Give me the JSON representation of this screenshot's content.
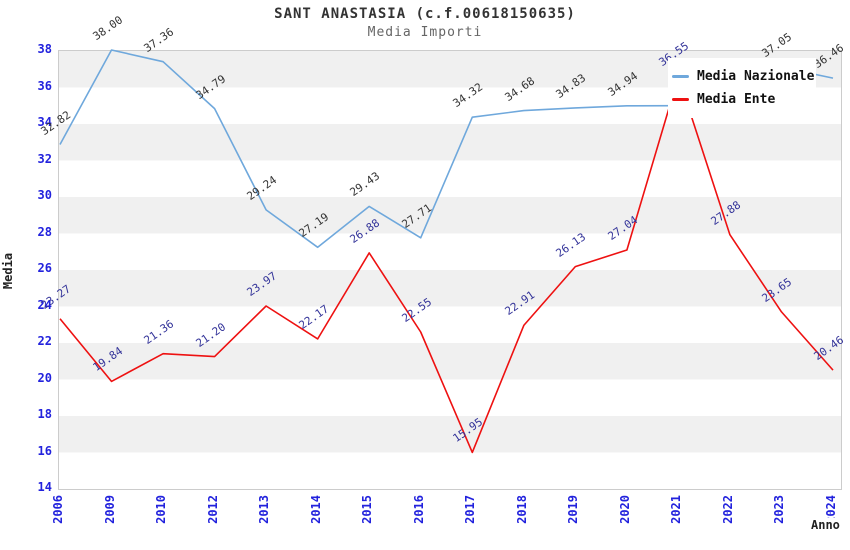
{
  "title": "SANT ANASTASIA (c.f.00618150635)",
  "subtitle": "Media Importi",
  "colors": {
    "band_gray": "#f0f0f0",
    "band_white": "#ffffff",
    "plot_border": "#cccccc",
    "axis_tick_text": "#2222dd",
    "nazionale_line": "#6fa8dc",
    "ente_line": "#ee1111",
    "nazionale_label_text": "#333333",
    "ente_label_text": "#333399"
  },
  "legend": {
    "items": [
      {
        "label": "Media Nazionale",
        "color": "#6fa8dc"
      },
      {
        "label": "Media Ente",
        "color": "#ee1111"
      }
    ]
  },
  "chart_data": {
    "type": "line",
    "title": "SANT ANASTASIA (c.f.00618150635)",
    "subtitle": "Media Importi",
    "xlabel": "Anno",
    "ylabel": "Media",
    "x": [
      2006,
      2009,
      2010,
      2012,
      2013,
      2014,
      2015,
      2016,
      2017,
      2018,
      2019,
      2020,
      2021,
      2022,
      2023,
      2024
    ],
    "yticks": [
      38,
      36,
      34,
      32,
      30,
      28,
      26,
      24,
      22,
      20,
      18,
      16,
      14
    ],
    "ylim": [
      14,
      38
    ],
    "grid": "alternating horizontal gray/white bands every 2 units",
    "legend_position": "top-right",
    "series": [
      {
        "name": "Media Nazionale",
        "color": "#6fa8dc",
        "label_color": "#333333",
        "values": [
          32.82,
          38.0,
          37.36,
          34.79,
          29.24,
          27.19,
          29.43,
          27.71,
          34.32,
          34.68,
          34.83,
          34.94,
          34.95,
          35.0,
          37.05,
          36.46
        ],
        "hidden_label_indexes": [
          12,
          13
        ],
        "note": "2021 and 2022 point labels are covered by the legend box; values estimated from line position"
      },
      {
        "name": "Media Ente",
        "color": "#ee1111",
        "label_color": "#333399",
        "values": [
          23.27,
          19.84,
          21.36,
          21.2,
          23.97,
          22.17,
          26.88,
          22.55,
          15.95,
          22.91,
          26.13,
          27.04,
          36.55,
          27.88,
          23.65,
          20.46
        ],
        "hidden_label_indexes": [],
        "note": "2021 peak label is mostly covered by the legend box, only trailing digits visible"
      }
    ]
  }
}
